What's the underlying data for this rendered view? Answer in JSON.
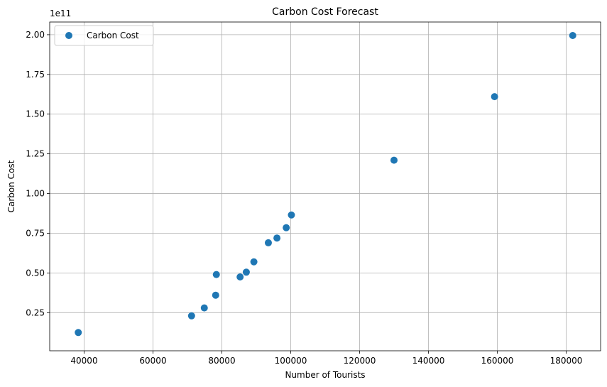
{
  "chart_data": {
    "type": "scatter",
    "title": "Carbon Cost Forecast",
    "xlabel": "Number of Tourists",
    "ylabel": "Carbon Cost",
    "y_offset_label": "1e11",
    "xlim": [
      30000,
      190000
    ],
    "ylim": [
      1000000000.0,
      208000000000.0
    ],
    "x_ticks": [
      40000,
      60000,
      80000,
      100000,
      120000,
      140000,
      160000,
      180000
    ],
    "x_tick_labels": [
      "40000",
      "60000",
      "80000",
      "100000",
      "120000",
      "140000",
      "160000",
      "180000"
    ],
    "y_ticks": [
      25000000000.0,
      50000000000.0,
      75000000000.0,
      100000000000.0,
      125000000000.0,
      150000000000.0,
      175000000000.0,
      200000000000.0
    ],
    "y_tick_labels": [
      "0.25",
      "0.50",
      "0.75",
      "1.00",
      "1.25",
      "1.50",
      "1.75",
      "2.00"
    ],
    "grid": true,
    "legend_position": "top-left",
    "series": [
      {
        "name": "Carbon Cost",
        "color": "#1f77b4",
        "x": [
          38300,
          71200,
          74900,
          78200,
          78400,
          85300,
          87100,
          89300,
          93500,
          96000,
          98700,
          100200,
          130000,
          159200,
          181900
        ],
        "y": [
          12500000000.0,
          23000000000.0,
          28000000000.0,
          36000000000.0,
          49000000000.0,
          47500000000.0,
          50500000000.0,
          57000000000.0,
          69000000000.0,
          72000000000.0,
          78500000000.0,
          86500000000.0,
          121000000000.0,
          161000000000.0,
          199500000000.0
        ]
      }
    ]
  }
}
